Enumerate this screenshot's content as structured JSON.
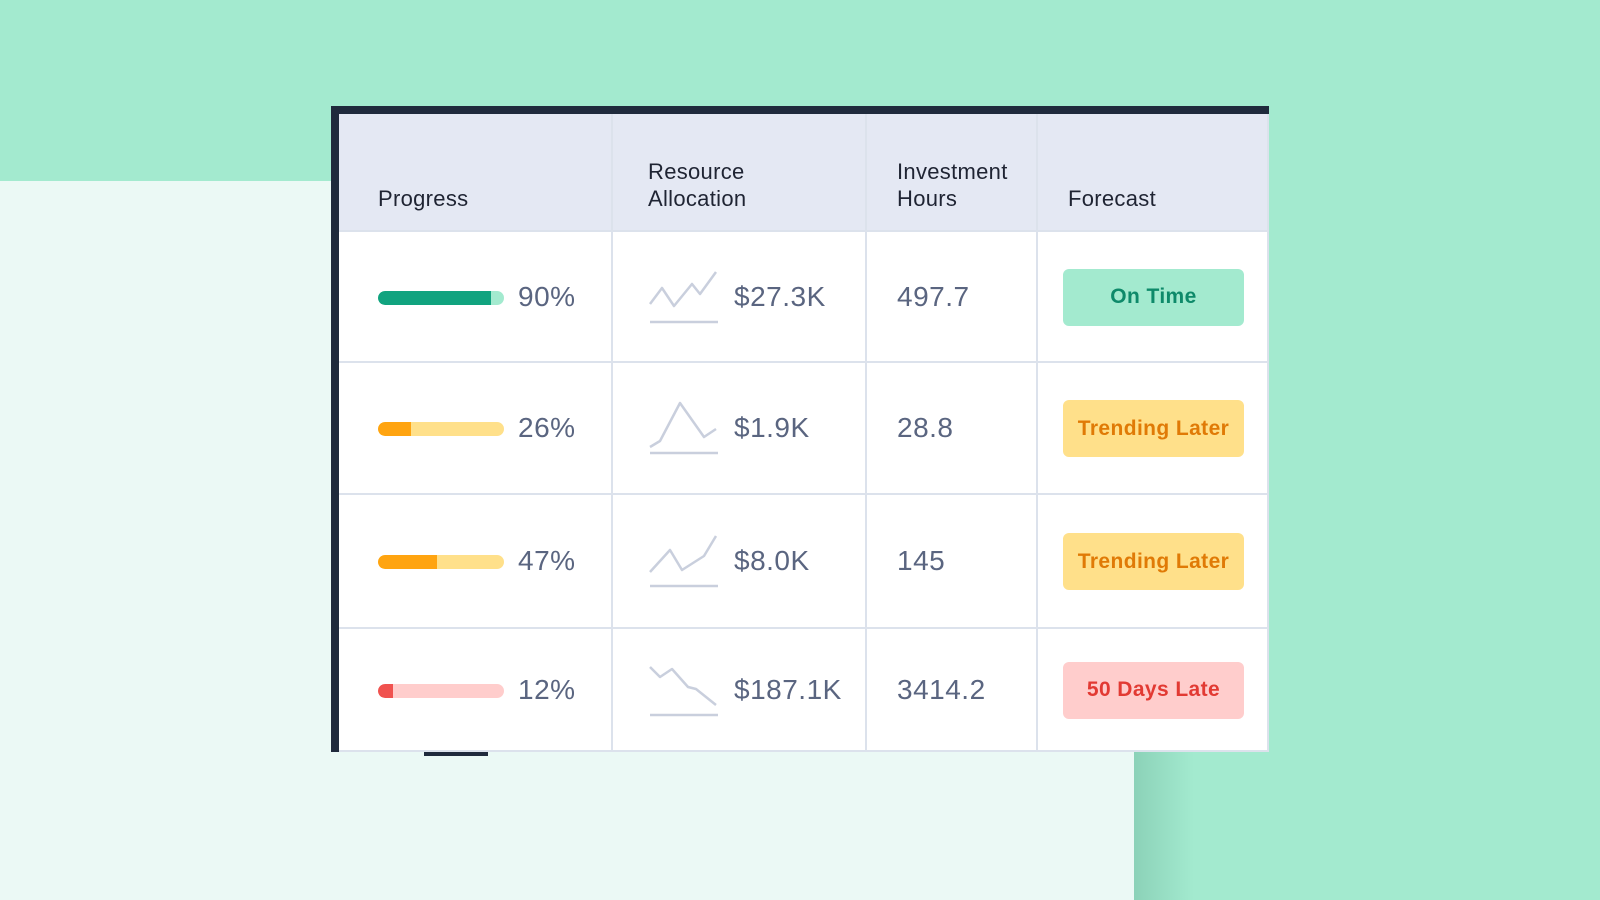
{
  "columns": [
    "Progress",
    "Resource\nAllocation",
    "Investment\nHours",
    "Forecast"
  ],
  "colors": {
    "green": "#11a37f",
    "green_track": "#a3eacf",
    "orange": "#ffa410",
    "orange_track": "#ffe08a",
    "red": "#f0524f",
    "red_track": "#ffcdcc",
    "sparkline": "#c9cfdd"
  },
  "rows": [
    {
      "progress": 0.9,
      "progress_label": "90%",
      "status_color": "green",
      "spark_icon": "sparkline-up-icon",
      "allocation": "$27.3K",
      "hours": "497.7",
      "forecast": "On Time",
      "forecast_bg": "#a3eacf",
      "forecast_color": "#0e8a6a"
    },
    {
      "progress": 0.26,
      "progress_label": "26%",
      "status_color": "orange",
      "spark_icon": "sparkline-peak-icon",
      "allocation": "$1.9K",
      "hours": "28.8",
      "forecast": "Trending Later",
      "forecast_bg": "#ffe08a",
      "forecast_color": "#e07a06"
    },
    {
      "progress": 0.47,
      "progress_label": "47%",
      "status_color": "orange",
      "spark_icon": "sparkline-rising-icon",
      "allocation": "$8.0K",
      "hours": "145",
      "forecast": "Trending Later",
      "forecast_bg": "#ffe08a",
      "forecast_color": "#e07a06"
    },
    {
      "progress": 0.12,
      "progress_label": "12%",
      "status_color": "red",
      "spark_icon": "sparkline-down-icon",
      "allocation": "$187.1K",
      "hours": "3414.2",
      "forecast": "50 Days Late",
      "forecast_bg": "#ffcdcc",
      "forecast_color": "#e23a33"
    }
  ]
}
